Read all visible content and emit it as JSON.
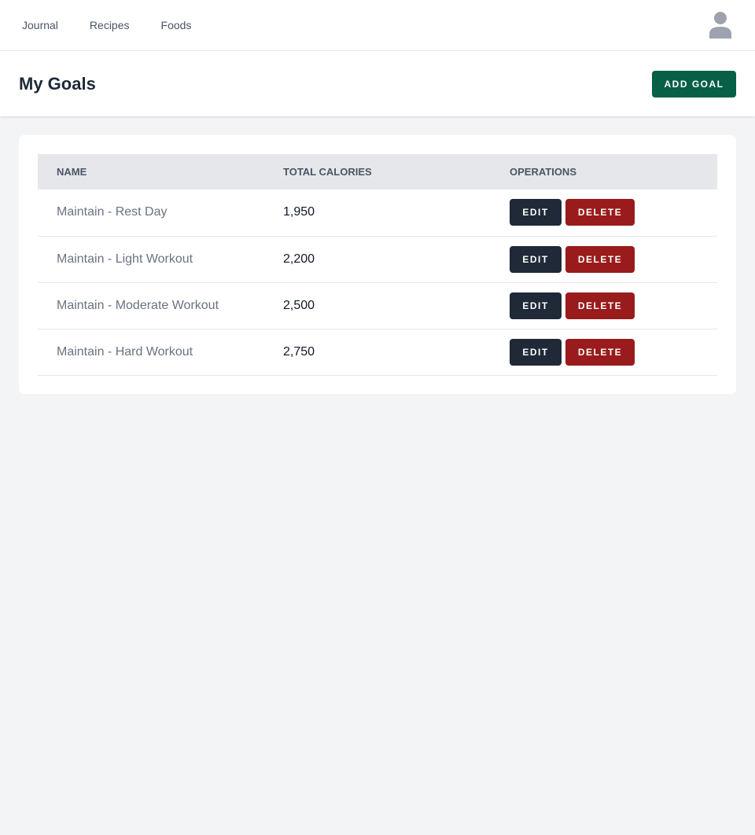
{
  "nav": {
    "items": [
      {
        "label": "Journal"
      },
      {
        "label": "Recipes"
      },
      {
        "label": "Foods"
      }
    ],
    "avatar_icon": "user-icon"
  },
  "header": {
    "title": "My Goals",
    "add_label": "ADD GOAL"
  },
  "table": {
    "columns": [
      "NAME",
      "TOTAL CALORIES",
      "OPERATIONS"
    ],
    "edit_label": "EDIT",
    "delete_label": "DELETE",
    "rows": [
      {
        "name": "Maintain - Rest Day",
        "calories": "1,950"
      },
      {
        "name": "Maintain - Light Workout",
        "calories": "2,200"
      },
      {
        "name": "Maintain - Moderate Workout",
        "calories": "2,500"
      },
      {
        "name": "Maintain - Hard Workout",
        "calories": "2,750"
      }
    ]
  },
  "colors": {
    "add": "#065f46",
    "edit": "#1f2937",
    "delete": "#991b1b"
  }
}
